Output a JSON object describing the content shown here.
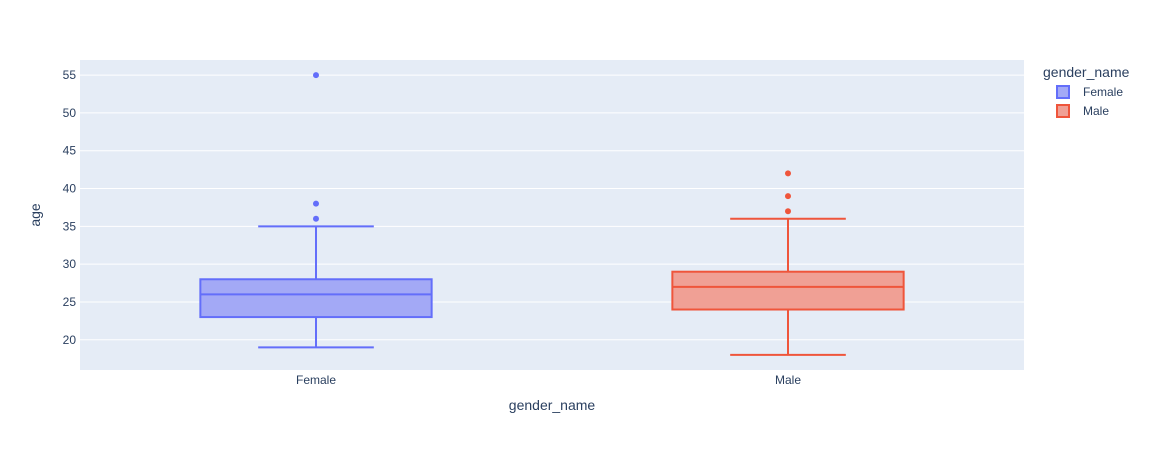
{
  "chart_data": {
    "type": "box",
    "xlabel": "gender_name",
    "ylabel": "age",
    "ylim": [
      16,
      57
    ],
    "y_ticks": [
      20,
      25,
      30,
      35,
      40,
      45,
      50,
      55
    ],
    "categories": [
      "Female",
      "Male"
    ],
    "grid": true,
    "legend": {
      "title": "gender_name",
      "placement": "top-right"
    },
    "series": [
      {
        "name": "Female",
        "color": "#636efa",
        "fill": "#a3a9f6",
        "min": 19,
        "q1": 23,
        "median": 26,
        "q3": 28,
        "max": 35,
        "outliers": [
          36,
          38,
          55
        ]
      },
      {
        "name": "Male",
        "color": "#ef553b",
        "fill": "#f0a095",
        "min": 18,
        "q1": 24,
        "median": 27,
        "q3": 29,
        "max": 36,
        "outliers": [
          37,
          39,
          42
        ]
      }
    ],
    "colors": {
      "plot_bg": "#e5ecf6",
      "grid": "#ffffff",
      "text": "#2a3f5f"
    }
  }
}
